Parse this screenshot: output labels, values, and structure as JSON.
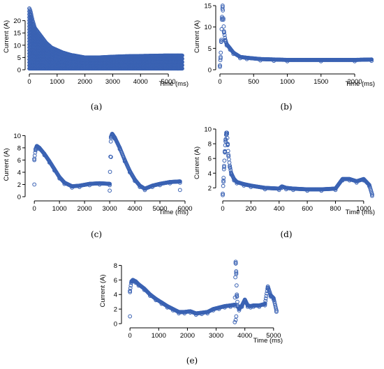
{
  "colors": {
    "points": "#3a62b3"
  },
  "chart_data": [
    {
      "type": "scatter",
      "caption": "(a)",
      "xlabel": "Time (ms)",
      "ylabel": "Current (A)",
      "xlim": [
        0,
        5600
      ],
      "ylim": [
        0,
        27
      ],
      "xticks": [
        0,
        1000,
        2000,
        3000,
        4000,
        5000
      ],
      "yticks": [
        0,
        5,
        10,
        15,
        20
      ],
      "x": [
        0,
        40,
        80,
        120,
        160,
        200,
        300,
        400,
        500,
        600,
        800,
        1000,
        1200,
        1500,
        2000,
        2500,
        3000,
        3500,
        4000,
        4500,
        5000,
        5500
      ],
      "y_upper": [
        25,
        24,
        22,
        20,
        18.5,
        17,
        15.5,
        14,
        12.5,
        11,
        9,
        8,
        7,
        6,
        5,
        5,
        5.3,
        5.5,
        5.6,
        5.7,
        5.8,
        5.8
      ],
      "y_lower": [
        0.5,
        0.5,
        0.5,
        0.5,
        0.5,
        0.5,
        0.5,
        0.5,
        0.5,
        0.5,
        0.5,
        0.5,
        0.5,
        0.5,
        0.5,
        0.5,
        0.5,
        0.5,
        0.5,
        0.5,
        0.5,
        0.5
      ]
    },
    {
      "type": "scatter",
      "caption": "(b)",
      "xlabel": "Time (ms)",
      "ylabel": "Current (A)",
      "xlim": [
        0,
        2300
      ],
      "ylim": [
        0,
        15.5
      ],
      "xticks": [
        0,
        500,
        1000,
        1500,
        2000
      ],
      "yticks": [
        0,
        5,
        10,
        15
      ],
      "x": [
        0,
        10,
        20,
        30,
        40,
        50,
        60,
        80,
        100,
        150,
        200,
        300,
        400,
        600,
        800,
        1000,
        1500,
        2000,
        2250
      ],
      "y": [
        1,
        3,
        7,
        12,
        15,
        12,
        9,
        7,
        6,
        5,
        4,
        3,
        2.8,
        2.5,
        2.4,
        2.3,
        2.3,
        2.3,
        2.4
      ]
    },
    {
      "type": "scatter",
      "caption": "(c)",
      "xlabel": "Time (ms)",
      "ylabel": "Current (A)",
      "xlim": [
        -200,
        6000
      ],
      "ylim": [
        0,
        10.5
      ],
      "xticks": [
        0,
        1000,
        2000,
        3000,
        4000,
        5000,
        6000
      ],
      "yticks": [
        0,
        2,
        4,
        6,
        8,
        10
      ],
      "x": [
        0,
        50,
        100,
        200,
        400,
        600,
        800,
        1000,
        1200,
        1500,
        1800,
        2200,
        2600,
        3000,
        3050,
        3100,
        3200,
        3400,
        3600,
        3800,
        4000,
        4200,
        4400,
        4700,
        5000,
        5400,
        5800
      ],
      "y": [
        6.2,
        7.8,
        8.3,
        8,
        7,
        5.8,
        4.5,
        3.2,
        2.3,
        1.7,
        1.8,
        2.1,
        2.2,
        2.1,
        9.8,
        10.3,
        9.7,
        8,
        6,
        4.2,
        2.8,
        1.8,
        1.3,
        1.8,
        2.1,
        2.4,
        2.5
      ],
      "outliers_x": [
        0,
        3000,
        3050,
        5800
      ],
      "outliers_y": [
        2,
        1,
        6.5,
        1.1
      ]
    },
    {
      "type": "scatter",
      "caption": "(d)",
      "xlabel": "Time (ms)",
      "ylabel": "Current (A)",
      "xlim": [
        -20,
        1080
      ],
      "ylim": [
        0.8,
        10
      ],
      "xticks": [
        0,
        200,
        400,
        600,
        800,
        1000
      ],
      "yticks": [
        2,
        4,
        6,
        8,
        10
      ],
      "x": [
        0,
        5,
        10,
        15,
        20,
        25,
        30,
        35,
        40,
        50,
        60,
        80,
        100,
        150,
        200,
        300,
        400,
        420,
        450,
        500,
        600,
        700,
        800,
        850,
        900,
        950,
        1000,
        1040,
        1060
      ],
      "y": [
        1.2,
        3,
        5,
        7,
        8.5,
        9.5,
        9.5,
        8,
        6.5,
        5,
        4,
        3.2,
        2.8,
        2.5,
        2.3,
        2,
        1.9,
        2.2,
        2,
        1.9,
        1.8,
        1.8,
        1.9,
        3.2,
        3.2,
        2.9,
        3.2,
        2.4,
        1.1
      ]
    },
    {
      "type": "scatter",
      "caption": "(e)",
      "xlabel": "Time (ms)",
      "ylabel": "Current (A)",
      "xlim": [
        -150,
        5150
      ],
      "ylim": [
        0,
        9
      ],
      "xticks": [
        0,
        1000,
        2000,
        3000,
        4000,
        5000
      ],
      "yticks": [
        0,
        2,
        4,
        6,
        8
      ],
      "x": [
        0,
        50,
        100,
        200,
        300,
        500,
        700,
        900,
        1100,
        1300,
        1500,
        1700,
        1900,
        2100,
        2300,
        2500,
        2700,
        2900,
        3100,
        3300,
        3500,
        3650,
        3680,
        3700,
        3720,
        3750,
        3800,
        3900,
        4000,
        4100,
        4200,
        4300,
        4500,
        4700,
        4800,
        4900,
        5000,
        5100
      ],
      "y": [
        4.5,
        5.8,
        6,
        5.8,
        5.4,
        4.8,
        4,
        3.4,
        2.9,
        2.4,
        2,
        1.6,
        1.6,
        1.7,
        1.4,
        1.5,
        1.6,
        2,
        2.2,
        2.4,
        2.5,
        2.6,
        8.5,
        7,
        4,
        2.5,
        2,
        2.5,
        3.3,
        2.5,
        2.4,
        2.5,
        2.5,
        2.7,
        5.1,
        3.9,
        3.5,
        1.8
      ],
      "outliers_x": [
        0,
        3650,
        3680,
        3700
      ],
      "outliers_y": [
        1,
        0.2,
        0.5,
        1
      ]
    }
  ]
}
